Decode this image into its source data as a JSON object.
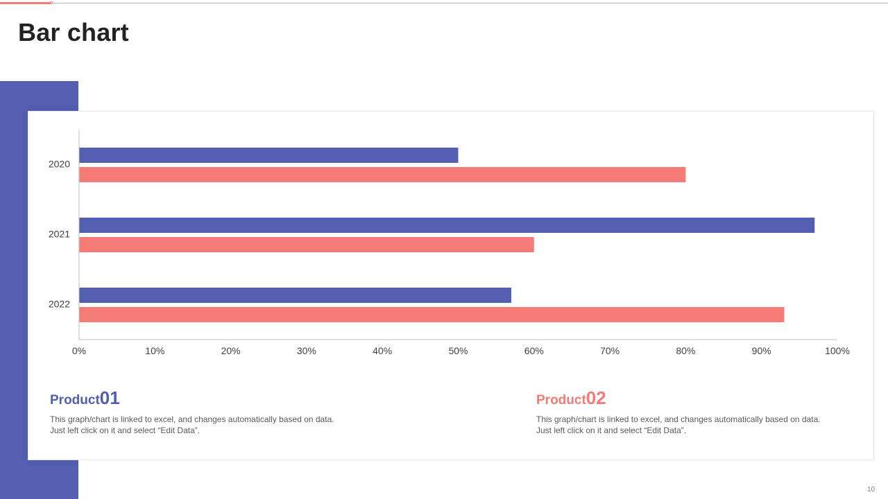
{
  "slide": {
    "title": "Bar chart",
    "page_number": "10"
  },
  "colors": {
    "primary": "#525eb0",
    "accent": "#f47b76",
    "title_text": "#222222",
    "body_text": "#595959",
    "axis": "#bfbfbf"
  },
  "chart_data": {
    "type": "bar",
    "orientation": "horizontal",
    "categories": [
      "2020",
      "2021",
      "2022"
    ],
    "series": [
      {
        "name": "Product 01",
        "color": "#525eb0",
        "values": [
          50,
          97,
          57
        ]
      },
      {
        "name": "Product 02",
        "color": "#f47b76",
        "values": [
          80,
          60,
          93
        ]
      }
    ],
    "x_ticks": [
      "0%",
      "10%",
      "20%",
      "30%",
      "40%",
      "50%",
      "60%",
      "70%",
      "80%",
      "90%",
      "100%"
    ],
    "xlim": [
      0,
      100
    ],
    "xlabel": "",
    "ylabel": "",
    "grid": false,
    "legend": "none"
  },
  "products": [
    {
      "word": "Product",
      "number": "01",
      "description": "This graph/chart is linked to excel, and changes automatically based on data. Just left click on it and select “Edit Data”."
    },
    {
      "word": "Product",
      "number": "02",
      "description": "This graph/chart is linked to excel, and changes automatically based on data. Just left click on it and select “Edit Data”."
    }
  ]
}
